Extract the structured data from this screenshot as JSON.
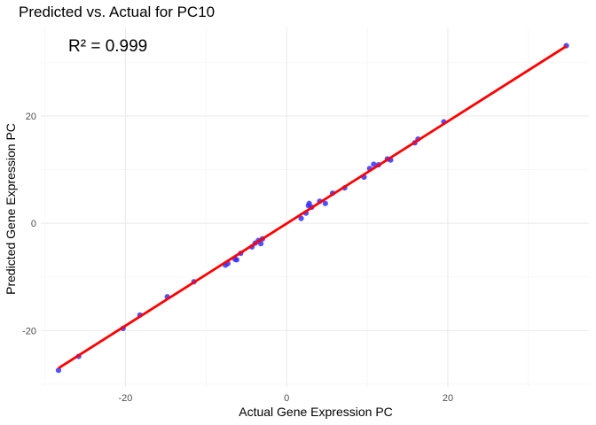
{
  "chart_data": {
    "type": "scatter",
    "title": "Predicted vs. Actual for PC10",
    "annotation": "R² = 0.999",
    "xlabel": "Actual Gene Expression PC",
    "ylabel": "Predicted Gene Expression PC",
    "xlim": [
      -30.5,
      37.5
    ],
    "ylim": [
      -30.5,
      36.5
    ],
    "x_ticks": [
      -20,
      0,
      20
    ],
    "y_ticks": [
      -20,
      0,
      20
    ],
    "grid": true,
    "colors": {
      "points": "#3333ff",
      "fit_line": "#ff0000"
    },
    "fit_line": {
      "x": [
        -28.3,
        34.7
      ],
      "y": [
        -27.0,
        33.0
      ]
    },
    "points": [
      {
        "x": -28.3,
        "y": -27.4
      },
      {
        "x": -25.8,
        "y": -24.8
      },
      {
        "x": -20.3,
        "y": -19.6
      },
      {
        "x": -18.2,
        "y": -17.1
      },
      {
        "x": -14.8,
        "y": -13.7
      },
      {
        "x": -11.5,
        "y": -10.9
      },
      {
        "x": -7.6,
        "y": -7.8
      },
      {
        "x": -7.3,
        "y": -7.5
      },
      {
        "x": -6.4,
        "y": -6.7
      },
      {
        "x": -6.2,
        "y": -6.8
      },
      {
        "x": -5.7,
        "y": -5.6
      },
      {
        "x": -4.3,
        "y": -4.4
      },
      {
        "x": -3.9,
        "y": -3.7
      },
      {
        "x": -3.5,
        "y": -3.2
      },
      {
        "x": -3.2,
        "y": -3.8
      },
      {
        "x": -3.0,
        "y": -2.9
      },
      {
        "x": 1.8,
        "y": 0.9
      },
      {
        "x": 2.4,
        "y": 1.9
      },
      {
        "x": 2.7,
        "y": 3.3
      },
      {
        "x": 2.8,
        "y": 3.7
      },
      {
        "x": 3.1,
        "y": 3.0
      },
      {
        "x": 4.1,
        "y": 4.1
      },
      {
        "x": 4.8,
        "y": 3.7
      },
      {
        "x": 5.7,
        "y": 5.6
      },
      {
        "x": 7.2,
        "y": 6.6
      },
      {
        "x": 9.6,
        "y": 8.6
      },
      {
        "x": 10.3,
        "y": 10.2
      },
      {
        "x": 10.8,
        "y": 11.0
      },
      {
        "x": 11.4,
        "y": 10.9
      },
      {
        "x": 12.5,
        "y": 12.0
      },
      {
        "x": 12.9,
        "y": 11.8
      },
      {
        "x": 15.9,
        "y": 15.0
      },
      {
        "x": 16.3,
        "y": 15.7
      },
      {
        "x": 19.5,
        "y": 18.9
      },
      {
        "x": 34.7,
        "y": 33.1
      }
    ]
  }
}
